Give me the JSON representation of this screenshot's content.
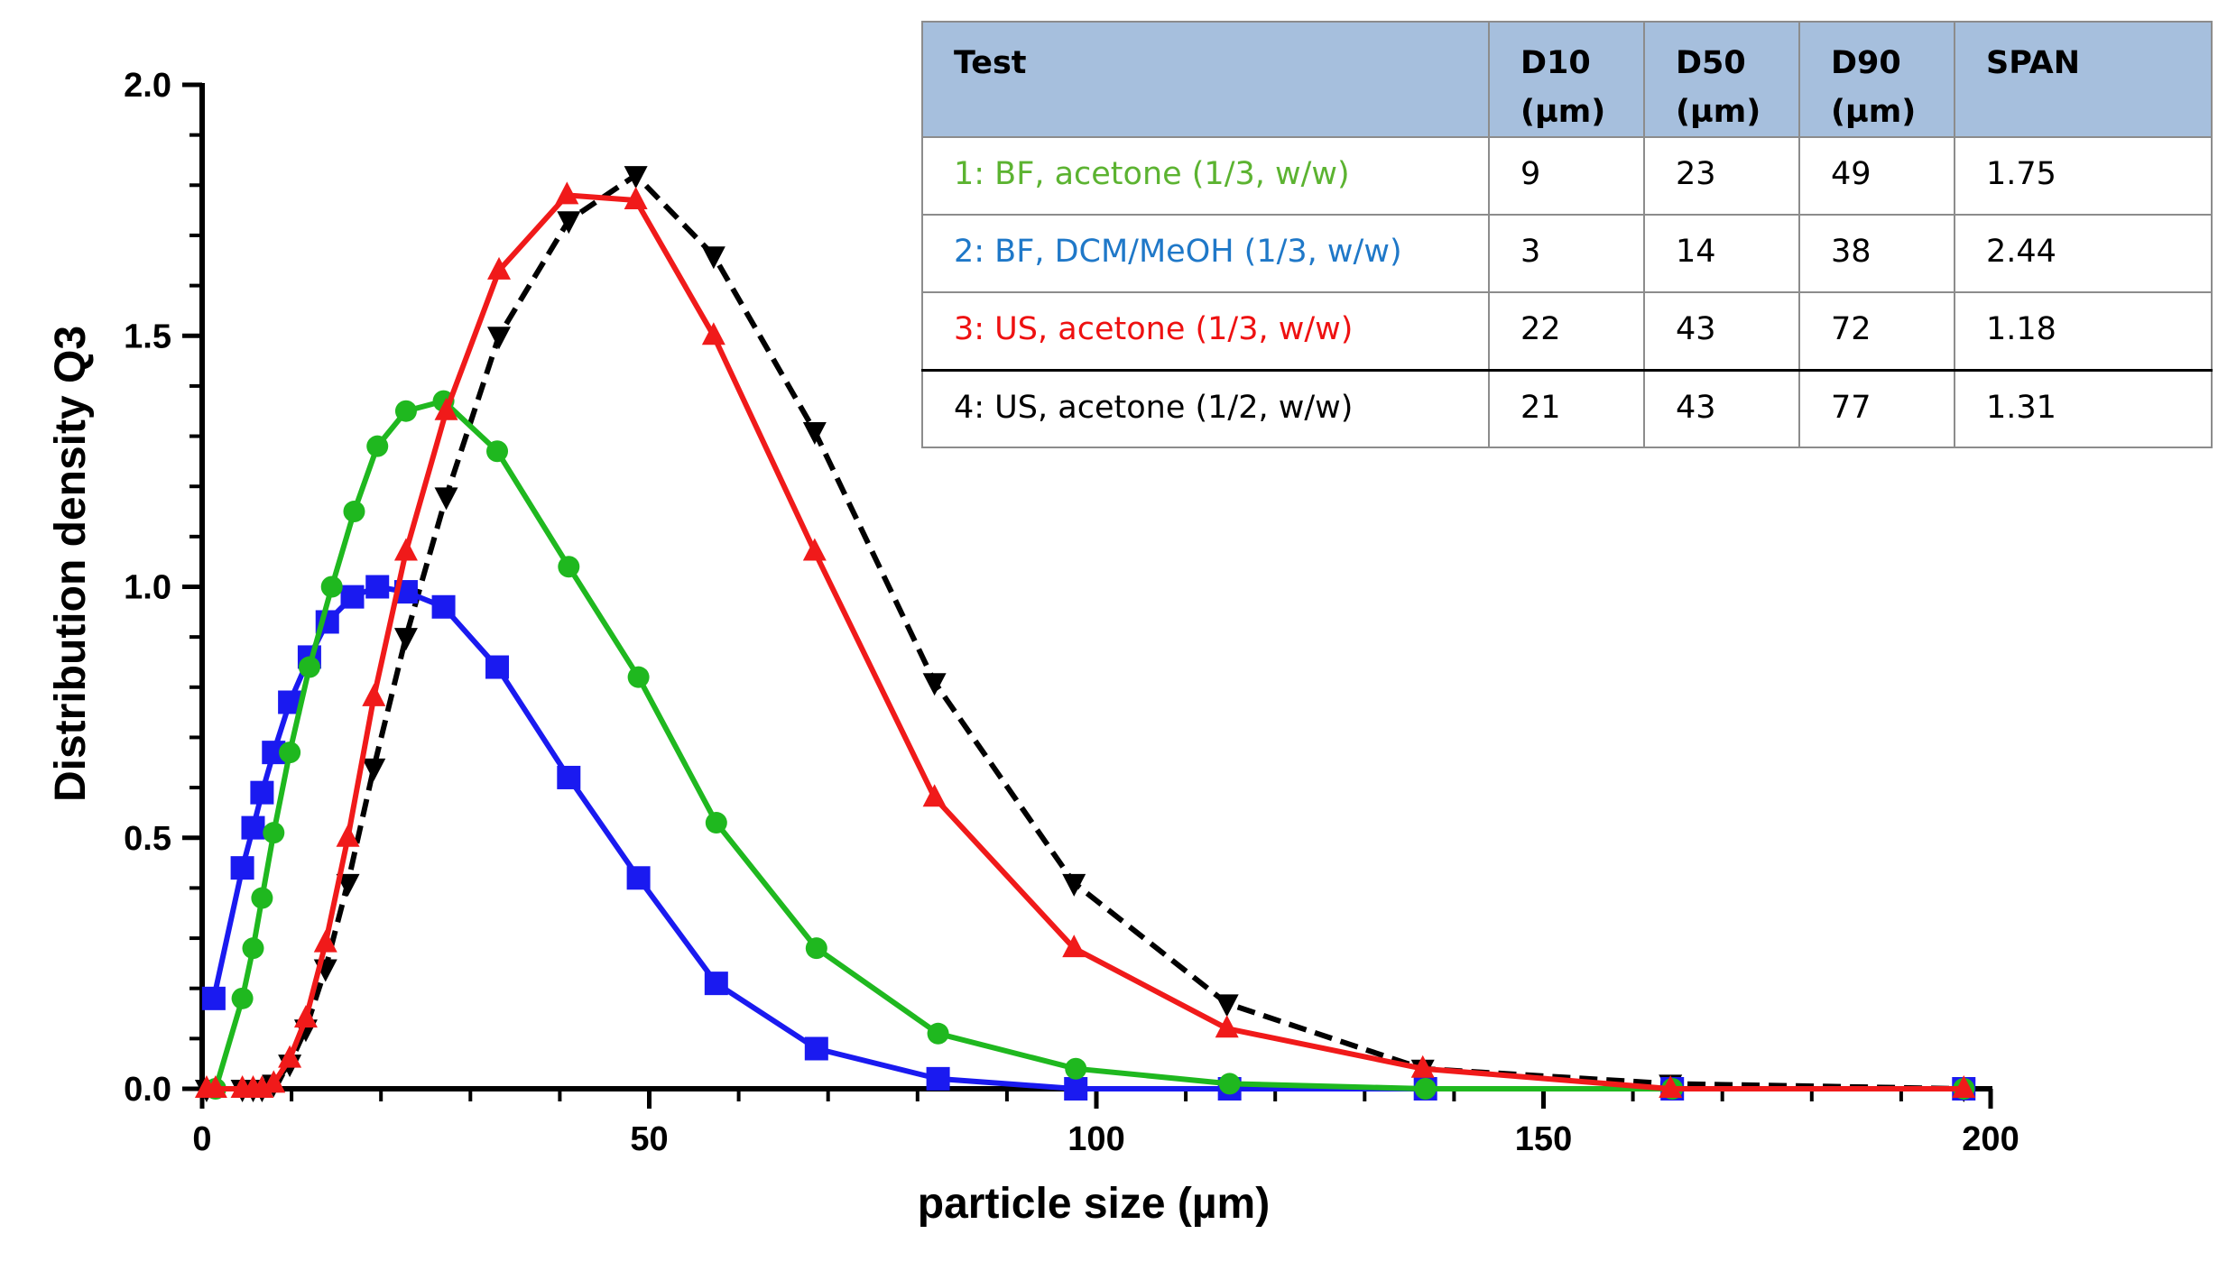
{
  "chart_data": {
    "type": "line",
    "xlabel": "particle size (µm)",
    "ylabel": "Distribution density Q3",
    "xlim": [
      0,
      200
    ],
    "ylim": [
      0,
      2.0
    ],
    "x_ticks": [
      "0",
      "50",
      "100",
      "150",
      "200"
    ],
    "y_ticks": [
      "0.0",
      "0.5",
      "1.0",
      "1.5",
      "2.0"
    ],
    "grid": false,
    "series": [
      {
        "name": "1: BF, acetone (1/3, w/w)",
        "color": "#1fb81f",
        "marker": "circle",
        "line_style": "solid",
        "x": [
          1.5,
          4.5,
          5.7,
          6.7,
          8.0,
          9.8,
          12.0,
          14.5,
          17.0,
          19.6,
          22.8,
          27.0,
          33.0,
          41.0,
          48.8,
          57.5,
          68.7,
          82.3,
          97.7,
          114.9,
          136.8,
          164.4,
          197.0
        ],
        "y": [
          0.0,
          0.18,
          0.28,
          0.38,
          0.51,
          0.67,
          0.84,
          1.0,
          1.15,
          1.28,
          1.35,
          1.37,
          1.27,
          1.04,
          0.82,
          0.53,
          0.28,
          0.11,
          0.04,
          0.01,
          0.0,
          0.0,
          0.0
        ]
      },
      {
        "name": "2: BF, DCM/MeOH (1/3, w/w)",
        "color": "#1a1af0",
        "marker": "square",
        "line_style": "solid",
        "x": [
          1.3,
          4.5,
          5.7,
          6.7,
          8.0,
          9.8,
          12.0,
          14.0,
          16.8,
          19.6,
          22.8,
          27.0,
          33.0,
          41.0,
          48.8,
          57.5,
          68.7,
          82.3,
          97.7,
          114.9,
          136.8,
          164.4,
          197.0
        ],
        "y": [
          0.18,
          0.44,
          0.52,
          0.59,
          0.67,
          0.77,
          0.86,
          0.93,
          0.98,
          1.0,
          0.99,
          0.96,
          0.84,
          0.62,
          0.42,
          0.21,
          0.08,
          0.02,
          0.0,
          0.0,
          0.0,
          0.0,
          0.0
        ]
      },
      {
        "name": "3: US, acetone (1/3, w/w)",
        "color": "#f01a1a",
        "marker": "triangle-up",
        "line_style": "solid",
        "x": [
          0.5,
          1.5,
          4.5,
          5.7,
          6.7,
          8.0,
          9.8,
          11.6,
          13.8,
          16.3,
          19.2,
          22.8,
          27.3,
          33.2,
          40.8,
          48.5,
          57.2,
          68.5,
          81.9,
          97.5,
          114.6,
          136.5,
          164.2,
          197.0
        ],
        "y": [
          0.0,
          0.0,
          0.0,
          0.0,
          0.0,
          0.01,
          0.06,
          0.14,
          0.29,
          0.5,
          0.78,
          1.07,
          1.35,
          1.63,
          1.78,
          1.77,
          1.5,
          1.07,
          0.58,
          0.28,
          0.12,
          0.04,
          0.0,
          0.0
        ]
      },
      {
        "name": "4: US, acetone (1/2, w/w)",
        "color": "#000000",
        "marker": "triangle-down",
        "line_style": "dashed",
        "x": [
          0.5,
          4.5,
          5.7,
          6.7,
          8.0,
          9.8,
          11.6,
          13.8,
          16.3,
          19.2,
          22.8,
          27.3,
          33.2,
          41.0,
          48.5,
          57.2,
          68.5,
          81.9,
          97.5,
          114.6,
          136.5,
          164.2,
          197.0
        ],
        "y": [
          0.0,
          0.0,
          0.0,
          0.0,
          0.01,
          0.05,
          0.12,
          0.24,
          0.41,
          0.64,
          0.9,
          1.18,
          1.5,
          1.73,
          1.82,
          1.66,
          1.31,
          0.81,
          0.41,
          0.17,
          0.04,
          0.01,
          0.0
        ]
      }
    ]
  },
  "table": {
    "headers": {
      "test": "Test",
      "d10_line1": "D10",
      "d10_line2": "(µm)",
      "d50_line1": "D50",
      "d50_line2": "(µm)",
      "d90_line1": "D90",
      "d90_line2": "(µm)",
      "span": "SPAN"
    },
    "rows": [
      {
        "test": "1: BF, acetone (1/3, w/w)",
        "color": "#5cb331",
        "d10": "9",
        "d50": "23",
        "d90": "49",
        "span": "1.75"
      },
      {
        "test": "2: BF, DCM/MeOH (1/3, w/w)",
        "color": "#1f78c8",
        "d10": "3",
        "d50": "14",
        "d90": "38",
        "span": "2.44"
      },
      {
        "test": "3: US, acetone (1/3, w/w)",
        "color": "#ee1111",
        "d10": "22",
        "d50": "43",
        "d90": "72",
        "span": "1.18"
      },
      {
        "test": "4: US, acetone (1/2, w/w)",
        "color": "#000000",
        "d10": "21",
        "d50": "43",
        "d90": "77",
        "span": "1.31"
      }
    ]
  }
}
